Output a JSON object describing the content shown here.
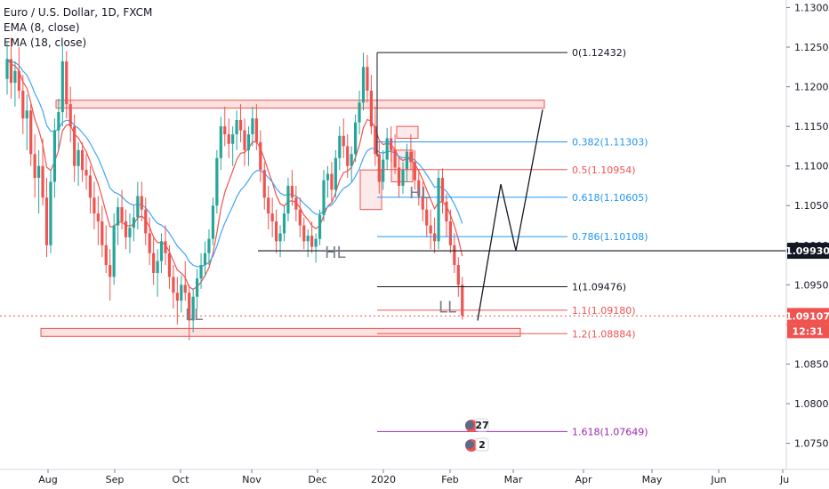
{
  "legend": {
    "symbol": "Euro / U.S. Dollar, 1D, FXCM",
    "ema_fast": "EMA (8, close)",
    "ema_slow": "EMA (18, close)"
  },
  "colors": {
    "up": "#26a69a",
    "down": "#ef5350",
    "ema_fast": "#ef5350",
    "ema_slow": "#42a5f5",
    "zone_fill": "#f8c9c7",
    "zone_border": "#ef5350",
    "price_current": "#ef5350",
    "hline": "#131722",
    "fib_golden": "#9c27b0"
  },
  "chart_data": {
    "type": "candlestick",
    "x_labels": [
      "Aug",
      "Sep",
      "Oct",
      "Nov",
      "Dec",
      "2020",
      "Feb",
      "Mar",
      "Apr",
      "May",
      "Jun",
      "Ju"
    ],
    "y_ticks": [
      "1.13000",
      "1.12500",
      "1.12000",
      "1.11500",
      "1.11000",
      "1.10500",
      "1.10000",
      "1.09500",
      "1.09000",
      "1.08500",
      "1.08000",
      "1.07500"
    ],
    "ylim": [
      1.0717,
      1.1305
    ],
    "current_price": "1.09107",
    "countdown": "12:31",
    "horizontal_line_price": "1.09930",
    "fib_levels": [
      {
        "label": "0(1.12432)",
        "price": 1.12432,
        "color": "#131722"
      },
      {
        "label": "0.382(1.11303)",
        "price": 1.11303,
        "color": "#2196f3"
      },
      {
        "label": "0.5(1.10954)",
        "price": 1.10954,
        "color": "#ef5350"
      },
      {
        "label": "0.618(1.10605)",
        "price": 1.10605,
        "color": "#2196f3"
      },
      {
        "label": "0.786(1.10108)",
        "price": 1.10108,
        "color": "#2196f3"
      },
      {
        "label": "1(1.09476)",
        "price": 1.09476,
        "color": "#131722"
      },
      {
        "label": "1.1(1.09180)",
        "price": 1.0918,
        "color": "#ef5350"
      },
      {
        "label": "1.2(1.08884)",
        "price": 1.08884,
        "color": "#ef5350"
      },
      {
        "label": "1.618(1.07649)",
        "price": 1.07649,
        "color": "#9c27b0"
      }
    ],
    "annotations": [
      {
        "text": "LL",
        "x": "Oct",
        "price": 1.0912
      },
      {
        "text": "HL",
        "x": "Dec",
        "price": 1.0991
      },
      {
        "text": "HL",
        "x": "2020",
        "price": 1.1066
      },
      {
        "text": "LL",
        "x": "Feb",
        "price": 1.0922
      }
    ],
    "zones": [
      {
        "name": "resistance",
        "from": 1.1173,
        "to": 1.1183
      },
      {
        "name": "support",
        "from": 1.0885,
        "to": 1.0895
      }
    ],
    "projection_path": [
      {
        "x": "Feb",
        "price": 1.0905
      },
      {
        "x": "Feb",
        "price": 1.1077
      },
      {
        "x": "Mar",
        "price": 1.0993
      },
      {
        "x": "Mar",
        "price": 1.1171
      }
    ],
    "event_badges": [
      "27",
      "2"
    ],
    "candles": [
      [
        1.121,
        1.1255,
        1.119,
        1.1235
      ],
      [
        1.1235,
        1.1262,
        1.1185,
        1.1205
      ],
      [
        1.1205,
        1.1232,
        1.1175,
        1.122
      ],
      [
        1.122,
        1.125,
        1.1185,
        1.1195
      ],
      [
        1.1195,
        1.1215,
        1.114,
        1.116
      ],
      [
        1.116,
        1.119,
        1.112,
        1.117
      ],
      [
        1.117,
        1.1178,
        1.11,
        1.1115
      ],
      [
        1.1115,
        1.114,
        1.106,
        1.1085
      ],
      [
        1.1085,
        1.112,
        1.104,
        1.11
      ],
      [
        1.11,
        1.1135,
        1.105,
        1.106
      ],
      [
        1.106,
        1.1085,
        1.0985,
        1.1
      ],
      [
        1.1,
        1.1095,
        1.099,
        1.108
      ],
      [
        1.108,
        1.116,
        1.106,
        1.1145
      ],
      [
        1.1145,
        1.1185,
        1.112,
        1.1168
      ],
      [
        1.1168,
        1.1255,
        1.115,
        1.1232
      ],
      [
        1.1232,
        1.1245,
        1.116,
        1.1178
      ],
      [
        1.1178,
        1.12,
        1.113,
        1.115
      ],
      [
        1.115,
        1.1165,
        1.108,
        1.11
      ],
      [
        1.11,
        1.113,
        1.1075,
        1.112
      ],
      [
        1.112,
        1.113,
        1.108,
        1.1095
      ],
      [
        1.1095,
        1.1115,
        1.107,
        1.1088
      ],
      [
        1.1088,
        1.11,
        1.104,
        1.106
      ],
      [
        1.106,
        1.108,
        1.102,
        1.104
      ],
      [
        1.104,
        1.1062,
        1.1,
        1.103
      ],
      [
        1.103,
        1.105,
        1.0985,
        1.1
      ],
      [
        1.1,
        1.1025,
        1.0965,
        1.0975
      ],
      [
        1.0975,
        1.0995,
        1.093,
        1.096
      ],
      [
        1.096,
        1.104,
        1.095,
        1.1025
      ],
      [
        1.1025,
        1.106,
        1.1,
        1.1048
      ],
      [
        1.1048,
        1.107,
        1.102,
        1.103
      ],
      [
        1.103,
        1.1045,
        1.0995,
        1.101
      ],
      [
        1.101,
        1.104,
        1.099,
        1.1022
      ],
      [
        1.1022,
        1.105,
        1.1005,
        1.1035
      ],
      [
        1.1035,
        1.108,
        1.102,
        1.1062
      ],
      [
        1.1062,
        1.108,
        1.103,
        1.1045
      ],
      [
        1.1045,
        1.106,
        1.1,
        1.1015
      ],
      [
        1.1015,
        1.1035,
        1.0975,
        1.099
      ],
      [
        1.099,
        1.101,
        1.095,
        1.0965
      ],
      [
        1.0965,
        1.0995,
        1.0935,
        1.098
      ],
      [
        1.098,
        1.1015,
        1.0965,
        1.1005
      ],
      [
        1.1005,
        1.1025,
        1.0975,
        1.099
      ],
      [
        1.099,
        1.1,
        1.0945,
        1.096
      ],
      [
        1.096,
        1.0975,
        1.092,
        1.094
      ],
      [
        1.094,
        1.096,
        1.09,
        1.093
      ],
      [
        1.093,
        1.0962,
        1.0915,
        1.095
      ],
      [
        1.095,
        1.098,
        1.093,
        1.094
      ],
      [
        1.094,
        1.095,
        1.088,
        1.0905
      ],
      [
        1.0905,
        1.0945,
        1.089,
        1.0935
      ],
      [
        1.0935,
        1.097,
        1.092,
        1.0958
      ],
      [
        1.0958,
        1.099,
        1.0945,
        1.0975
      ],
      [
        1.0975,
        1.1005,
        1.096,
        1.099
      ],
      [
        1.099,
        1.102,
        1.0975,
        1.1008
      ],
      [
        1.1008,
        1.106,
        1.1,
        1.105
      ],
      [
        1.105,
        1.112,
        1.104,
        1.111
      ],
      [
        1.111,
        1.1162,
        1.1095,
        1.115
      ],
      [
        1.115,
        1.1175,
        1.1125,
        1.114
      ],
      [
        1.114,
        1.116,
        1.111,
        1.1128
      ],
      [
        1.1128,
        1.115,
        1.11,
        1.114
      ],
      [
        1.114,
        1.117,
        1.112,
        1.1158
      ],
      [
        1.1158,
        1.1178,
        1.113,
        1.1145
      ],
      [
        1.1145,
        1.116,
        1.11,
        1.112
      ],
      [
        1.112,
        1.115,
        1.11,
        1.114
      ],
      [
        1.114,
        1.1175,
        1.1125,
        1.116
      ],
      [
        1.116,
        1.1178,
        1.112,
        1.113
      ],
      [
        1.113,
        1.1145,
        1.108,
        1.1095
      ],
      [
        1.1095,
        1.1105,
        1.1045,
        1.106
      ],
      [
        1.106,
        1.1075,
        1.102,
        1.104
      ],
      [
        1.104,
        1.106,
        1.101,
        1.103
      ],
      [
        1.103,
        1.1045,
        1.099,
        1.1005
      ],
      [
        1.1005,
        1.1025,
        1.0985,
        1.1015
      ],
      [
        1.1015,
        1.105,
        1.1005,
        1.104
      ],
      [
        1.104,
        1.1085,
        1.103,
        1.1075
      ],
      [
        1.1075,
        1.1095,
        1.105,
        1.106
      ],
      [
        1.106,
        1.1075,
        1.103,
        1.1045
      ],
      [
        1.1045,
        1.106,
        1.101,
        1.1025
      ],
      [
        1.1025,
        1.1035,
        1.0995,
        1.1005
      ],
      [
        1.1005,
        1.102,
        1.0985,
        1.1012
      ],
      [
        1.1012,
        1.103,
        1.099,
        1.0998
      ],
      [
        1.0998,
        1.1015,
        1.0978,
        1.1008
      ],
      [
        1.1008,
        1.1045,
        1.1,
        1.1038
      ],
      [
        1.1038,
        1.1095,
        1.103,
        1.1082
      ],
      [
        1.1082,
        1.11,
        1.106,
        1.109
      ],
      [
        1.109,
        1.1105,
        1.1055,
        1.107
      ],
      [
        1.107,
        1.112,
        1.106,
        1.111
      ],
      [
        1.111,
        1.115,
        1.1095,
        1.1138
      ],
      [
        1.1138,
        1.116,
        1.111,
        1.1125
      ],
      [
        1.1125,
        1.114,
        1.1085,
        1.11
      ],
      [
        1.11,
        1.1125,
        1.108,
        1.1115
      ],
      [
        1.1115,
        1.1165,
        1.1105,
        1.1155
      ],
      [
        1.1155,
        1.1195,
        1.114,
        1.118
      ],
      [
        1.118,
        1.1243,
        1.117,
        1.1225
      ],
      [
        1.1225,
        1.124,
        1.118,
        1.1195
      ],
      [
        1.1195,
        1.1215,
        1.114,
        1.115
      ],
      [
        1.115,
        1.1175,
        1.11,
        1.1115
      ],
      [
        1.1115,
        1.113,
        1.1065,
        1.108
      ],
      [
        1.108,
        1.112,
        1.107,
        1.1108
      ],
      [
        1.1108,
        1.1148,
        1.1095,
        1.1135
      ],
      [
        1.1135,
        1.115,
        1.1105,
        1.112
      ],
      [
        1.112,
        1.114,
        1.109,
        1.1098
      ],
      [
        1.1098,
        1.111,
        1.106,
        1.1075
      ],
      [
        1.1075,
        1.1105,
        1.1065,
        1.1095
      ],
      [
        1.1095,
        1.1128,
        1.108,
        1.1118
      ],
      [
        1.1118,
        1.114,
        1.1095,
        1.1105
      ],
      [
        1.1105,
        1.112,
        1.107,
        1.1082
      ],
      [
        1.1082,
        1.1095,
        1.105,
        1.1062
      ],
      [
        1.1062,
        1.108,
        1.103,
        1.1045
      ],
      [
        1.1045,
        1.106,
        1.101,
        1.1025
      ],
      [
        1.1025,
        1.1045,
        1.0995,
        1.1015
      ],
      [
        1.1015,
        1.1035,
        1.099,
        1.1005
      ],
      [
        1.1005,
        1.1095,
        1.0995,
        1.1085
      ],
      [
        1.1085,
        1.1097,
        1.104,
        1.1055
      ],
      [
        1.1055,
        1.1065,
        1.101,
        1.103
      ],
      [
        1.103,
        1.1045,
        1.099,
        1.1
      ],
      [
        1.1,
        1.1015,
        1.0965,
        1.0975
      ],
      [
        1.0975,
        1.0985,
        1.0935,
        1.095
      ],
      [
        1.095,
        1.096,
        1.0906,
        1.0911
      ]
    ]
  }
}
